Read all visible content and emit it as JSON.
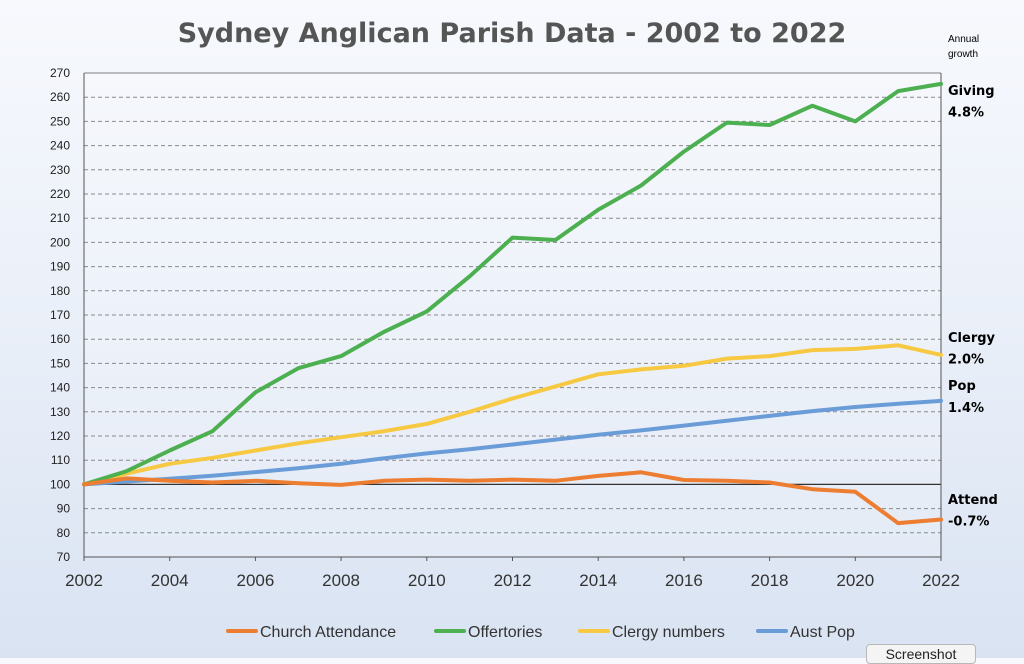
{
  "chart_data": {
    "type": "line",
    "title": "Sydney Anglican Parish Data - 2002 to 2022",
    "x": [
      2002,
      2003,
      2004,
      2005,
      2006,
      2007,
      2008,
      2009,
      2010,
      2011,
      2012,
      2013,
      2014,
      2015,
      2016,
      2017,
      2018,
      2019,
      2020,
      2021,
      2022
    ],
    "xlim": [
      2002,
      2022
    ],
    "ylim": [
      70,
      270
    ],
    "x_ticks": [
      "2002",
      "2004",
      "2006",
      "2008",
      "2010",
      "2012",
      "2014",
      "2016",
      "2018",
      "2020",
      "2022"
    ],
    "y_ticks": [
      "70",
      "80",
      "90",
      "100",
      "110",
      "120",
      "130",
      "140",
      "150",
      "160",
      "170",
      "180",
      "190",
      "200",
      "210",
      "220",
      "230",
      "240",
      "250",
      "260",
      "270"
    ],
    "grid": "horizontal dashed",
    "baseline": 100,
    "legend_position": "bottom",
    "series": [
      {
        "name": "Church Attendance",
        "color": "#ed7d31",
        "values": [
          100,
          102.5,
          101.5,
          100.8,
          101.5,
          100.5,
          99.8,
          101.5,
          102,
          101.5,
          102,
          101.5,
          103.5,
          105,
          101.8,
          101.5,
          100.8,
          98,
          97,
          84,
          85.5
        ]
      },
      {
        "name": "Offertories",
        "color": "#4caf50",
        "values": [
          100,
          105.5,
          114,
          122,
          138,
          148,
          153,
          163,
          171.5,
          186,
          202,
          201,
          213.5,
          223.5,
          237.5,
          249.5,
          248.5,
          256.5,
          250,
          262.5,
          265.5
        ]
      },
      {
        "name": "Clergy numbers",
        "color": "#f7c842",
        "values": [
          100,
          104.5,
          108.5,
          111,
          114,
          117,
          119.5,
          122,
          125,
          130,
          135.5,
          140.5,
          145.5,
          147.5,
          149,
          152,
          153,
          155.5,
          156,
          157.5,
          153.5
        ]
      },
      {
        "name": "Aust Pop",
        "color": "#6a9cd8",
        "values": [
          100,
          101.2,
          102.3,
          103.6,
          105.1,
          106.7,
          108.5,
          110.8,
          112.8,
          114.5,
          116.5,
          118.5,
          120.5,
          122.3,
          124.3,
          126.3,
          128.3,
          130.3,
          132,
          133.3,
          134.5
        ]
      }
    ],
    "annotations": {
      "header_line1": "Annual",
      "header_line2": "growth",
      "items": [
        {
          "name": "Giving",
          "value": "4.8%",
          "y1": 263,
          "y2": 254
        },
        {
          "name": "Clergy",
          "value": "2.0%",
          "y1": 161,
          "y2": 152
        },
        {
          "name": "Pop",
          "value": "1.4%",
          "y1": 141,
          "y2": 132
        },
        {
          "name": "Attend",
          "value": "-0.7%",
          "y1": 94,
          "y2": 85
        }
      ]
    }
  },
  "screenshot_button": "Screenshot"
}
